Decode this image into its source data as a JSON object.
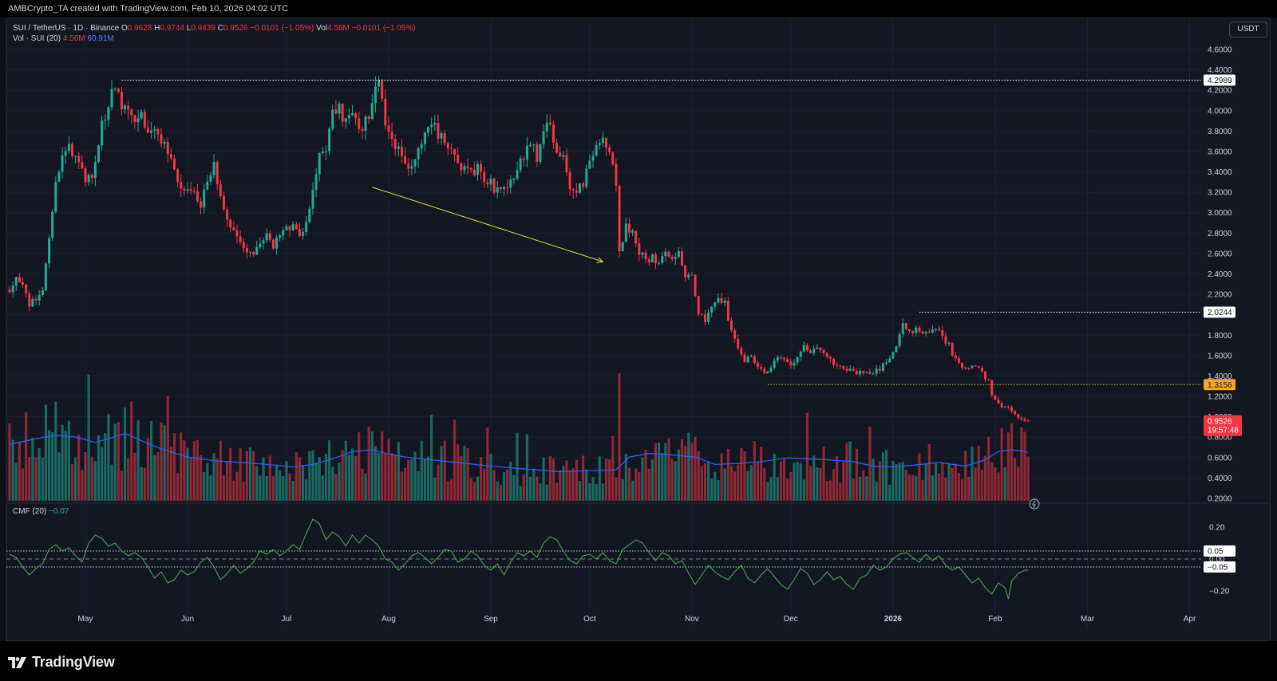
{
  "header": {
    "text": "AMBCrypto_TA created with TradingView.com, Feb 10, 2026 04:02 UTC"
  },
  "legend": {
    "symbol": "SUI / TetherUS · 1D · Binance",
    "open_label": "O",
    "open": "0.9628",
    "high_label": "H",
    "high": "0.9744",
    "low_label": "L",
    "low": "0.9439",
    "close_label": "C",
    "close": "0.9526",
    "change": "−0.0101 (−1.05%)",
    "vol_label": "Vol",
    "vol": "4.56M",
    "vol_change": "−0.0101 (−1.05%)",
    "vol_ind_label": "Vol · SUI (20)",
    "vol_ind_value": "4.56M",
    "vol_ind_ma": "60.91M"
  },
  "currency_button": "USDT",
  "cmf_legend": {
    "label": "CMF (20)",
    "value": "−0.07"
  },
  "footer": {
    "logo_text": "TradingView"
  },
  "colors": {
    "up": "#22ab94",
    "down": "#f23645",
    "vol_ma": "#2962ff",
    "cmf_line": "#4caf50",
    "arrow": "#e6d84a",
    "background": "#131722"
  },
  "chart_data": {
    "type": "candlestick",
    "symbol": "SUI / TetherUS",
    "interval": "1D",
    "exchange": "Binance",
    "ylim": [
      0.2,
      4.6
    ],
    "price_ticks": [
      "4.6000",
      "4.4000",
      "4.2000",
      "4.0000",
      "3.8000",
      "3.6000",
      "3.4000",
      "3.2000",
      "3.0000",
      "2.8000",
      "2.6000",
      "2.4000",
      "2.2000",
      "2.0000",
      "1.8000",
      "1.6000",
      "1.4000",
      "1.2000",
      "1.0000",
      "0.8000",
      "0.6000",
      "0.4000",
      "0.2000"
    ],
    "x_ticks": [
      "May",
      "Jun",
      "Jul",
      "Aug",
      "Sep",
      "Oct",
      "Nov",
      "Dec",
      "2026",
      "Feb",
      "Mar",
      "Apr"
    ],
    "x_tick_days": [
      23,
      54,
      84,
      115,
      146,
      176,
      207,
      237,
      268,
      299,
      327,
      358
    ],
    "bold_x_tick": "2026",
    "levels": [
      {
        "value": 4.2989,
        "label": "4.2989",
        "start_day": 34,
        "color": "#ffffff"
      },
      {
        "value": 2.0244,
        "label": "2.0244",
        "start_day": 276,
        "color": "#ffffff"
      },
      {
        "value": 1.3156,
        "label": "1.3156",
        "start_day": 230,
        "color": "#f5a623"
      }
    ],
    "last_price": {
      "value": 0.9526,
      "label": "0.9526",
      "countdown": "19:57:48"
    },
    "anchors": [
      [
        0,
        2.25
      ],
      [
        2,
        2.4
      ],
      [
        4,
        2.3
      ],
      [
        6,
        2.1
      ],
      [
        8,
        2.14
      ],
      [
        10,
        2.2
      ],
      [
        12,
        2.75
      ],
      [
        14,
        3.35
      ],
      [
        16,
        3.55
      ],
      [
        18,
        3.62
      ],
      [
        20,
        3.5
      ],
      [
        22,
        3.38
      ],
      [
        24,
        3.32
      ],
      [
        26,
        3.48
      ],
      [
        28,
        3.85
      ],
      [
        30,
        4.1
      ],
      [
        32,
        4.18
      ],
      [
        34,
        4.05
      ],
      [
        36,
        3.98
      ],
      [
        38,
        3.9
      ],
      [
        40,
        3.92
      ],
      [
        42,
        3.85
      ],
      [
        44,
        3.78
      ],
      [
        46,
        3.7
      ],
      [
        48,
        3.6
      ],
      [
        50,
        3.4
      ],
      [
        52,
        3.25
      ],
      [
        54,
        3.18
      ],
      [
        56,
        3.22
      ],
      [
        58,
        3.05
      ],
      [
        60,
        3.3
      ],
      [
        62,
        3.45
      ],
      [
        64,
        3.2
      ],
      [
        66,
        2.95
      ],
      [
        68,
        2.85
      ],
      [
        70,
        2.75
      ],
      [
        72,
        2.65
      ],
      [
        74,
        2.55
      ],
      [
        76,
        2.7
      ],
      [
        78,
        2.8
      ],
      [
        80,
        2.65
      ],
      [
        82,
        2.78
      ],
      [
        84,
        2.9
      ],
      [
        86,
        2.85
      ],
      [
        88,
        2.82
      ],
      [
        90,
        2.9
      ],
      [
        92,
        3.2
      ],
      [
        94,
        3.55
      ],
      [
        96,
        3.65
      ],
      [
        98,
        4.05
      ],
      [
        100,
        4.0
      ],
      [
        102,
        3.9
      ],
      [
        104,
        3.95
      ],
      [
        106,
        3.8
      ],
      [
        108,
        3.9
      ],
      [
        110,
        4.05
      ],
      [
        111,
        4.28
      ],
      [
        112,
        4.3
      ],
      [
        113,
        4.05
      ],
      [
        114,
        3.85
      ],
      [
        116,
        3.75
      ],
      [
        118,
        3.6
      ],
      [
        120,
        3.42
      ],
      [
        122,
        3.5
      ],
      [
        124,
        3.65
      ],
      [
        126,
        3.8
      ],
      [
        128,
        3.92
      ],
      [
        130,
        3.75
      ],
      [
        132,
        3.72
      ],
      [
        134,
        3.6
      ],
      [
        136,
        3.45
      ],
      [
        138,
        3.5
      ],
      [
        140,
        3.38
      ],
      [
        142,
        3.45
      ],
      [
        144,
        3.32
      ],
      [
        146,
        3.3
      ],
      [
        148,
        3.2
      ],
      [
        150,
        3.25
      ],
      [
        152,
        3.3
      ],
      [
        154,
        3.45
      ],
      [
        156,
        3.55
      ],
      [
        158,
        3.7
      ],
      [
        160,
        3.55
      ],
      [
        162,
        3.8
      ],
      [
        164,
        3.85
      ],
      [
        166,
        3.65
      ],
      [
        168,
        3.55
      ],
      [
        170,
        3.25
      ],
      [
        172,
        3.18
      ],
      [
        174,
        3.28
      ],
      [
        176,
        3.5
      ],
      [
        178,
        3.65
      ],
      [
        180,
        3.7
      ],
      [
        182,
        3.6
      ],
      [
        184,
        3.25
      ],
      [
        185,
        2.6
      ],
      [
        187,
        2.9
      ],
      [
        189,
        2.8
      ],
      [
        191,
        2.6
      ],
      [
        193,
        2.55
      ],
      [
        195,
        2.55
      ],
      [
        197,
        2.5
      ],
      [
        199,
        2.6
      ],
      [
        201,
        2.55
      ],
      [
        203,
        2.65
      ],
      [
        205,
        2.4
      ],
      [
        207,
        2.35
      ],
      [
        209,
        2.0
      ],
      [
        211,
        1.95
      ],
      [
        213,
        2.05
      ],
      [
        215,
        2.15
      ],
      [
        217,
        2.1
      ],
      [
        219,
        1.85
      ],
      [
        221,
        1.7
      ],
      [
        223,
        1.55
      ],
      [
        225,
        1.6
      ],
      [
        227,
        1.5
      ],
      [
        229,
        1.42
      ],
      [
        231,
        1.48
      ],
      [
        233,
        1.6
      ],
      [
        235,
        1.55
      ],
      [
        237,
        1.5
      ],
      [
        239,
        1.6
      ],
      [
        241,
        1.7
      ],
      [
        243,
        1.65
      ],
      [
        245,
        1.68
      ],
      [
        247,
        1.6
      ],
      [
        249,
        1.55
      ],
      [
        251,
        1.5
      ],
      [
        253,
        1.48
      ],
      [
        255,
        1.45
      ],
      [
        257,
        1.42
      ],
      [
        259,
        1.45
      ],
      [
        261,
        1.4
      ],
      [
        263,
        1.45
      ],
      [
        265,
        1.5
      ],
      [
        267,
        1.55
      ],
      [
        269,
        1.72
      ],
      [
        271,
        1.9
      ],
      [
        273,
        1.85
      ],
      [
        275,
        1.85
      ],
      [
        277,
        1.8
      ],
      [
        279,
        1.82
      ],
      [
        281,
        1.88
      ],
      [
        283,
        1.78
      ],
      [
        285,
        1.7
      ],
      [
        287,
        1.55
      ],
      [
        289,
        1.5
      ],
      [
        291,
        1.48
      ],
      [
        293,
        1.5
      ],
      [
        295,
        1.42
      ],
      [
        297,
        1.35
      ],
      [
        298,
        1.22
      ],
      [
        300,
        1.12
      ],
      [
        302,
        1.1
      ],
      [
        304,
        1.05
      ],
      [
        306,
        1.0
      ],
      [
        308,
        0.96
      ],
      [
        309,
        0.9526
      ]
    ],
    "volume_axis": {
      "max_m": 140
    },
    "volume_ma_anchors": [
      [
        0,
        62
      ],
      [
        8,
        68
      ],
      [
        14,
        72
      ],
      [
        20,
        70
      ],
      [
        26,
        64
      ],
      [
        30,
        68
      ],
      [
        35,
        74
      ],
      [
        40,
        66
      ],
      [
        46,
        57
      ],
      [
        54,
        48
      ],
      [
        62,
        44
      ],
      [
        70,
        42
      ],
      [
        78,
        40
      ],
      [
        86,
        37
      ],
      [
        92,
        40
      ],
      [
        98,
        46
      ],
      [
        104,
        54
      ],
      [
        110,
        56
      ],
      [
        114,
        52
      ],
      [
        120,
        48
      ],
      [
        128,
        45
      ],
      [
        136,
        42
      ],
      [
        146,
        38
      ],
      [
        156,
        35
      ],
      [
        166,
        32
      ],
      [
        176,
        33
      ],
      [
        184,
        34
      ],
      [
        188,
        48
      ],
      [
        194,
        52
      ],
      [
        202,
        50
      ],
      [
        208,
        48
      ],
      [
        214,
        40
      ],
      [
        222,
        41
      ],
      [
        230,
        44
      ],
      [
        236,
        47
      ],
      [
        242,
        46
      ],
      [
        248,
        45
      ],
      [
        256,
        43
      ],
      [
        262,
        38
      ],
      [
        268,
        37
      ],
      [
        274,
        39
      ],
      [
        282,
        42
      ],
      [
        290,
        38
      ],
      [
        296,
        45
      ],
      [
        300,
        54
      ],
      [
        304,
        56
      ],
      [
        308,
        54
      ],
      [
        309,
        53
      ]
    ],
    "cmf": {
      "ylim": [
        -0.27,
        0.31
      ],
      "ticks": [
        "0.20",
        "0.00",
        "−0.20"
      ],
      "tick_values": [
        0.2,
        0.0,
        -0.2
      ],
      "levels": [
        {
          "value": 0.05,
          "label": "0.05"
        },
        {
          "value": -0.05,
          "label": "−0.05"
        }
      ],
      "anchors": [
        [
          0,
          0.03
        ],
        [
          2,
          0.01
        ],
        [
          4,
          -0.05
        ],
        [
          6,
          -0.1
        ],
        [
          8,
          -0.06
        ],
        [
          10,
          -0.03
        ],
        [
          12,
          0.06
        ],
        [
          14,
          0.09
        ],
        [
          16,
          0.05
        ],
        [
          18,
          0.07
        ],
        [
          20,
          0.02
        ],
        [
          22,
          -0.02
        ],
        [
          24,
          0.1
        ],
        [
          26,
          0.15
        ],
        [
          28,
          0.13
        ],
        [
          30,
          0.08
        ],
        [
          32,
          0.1
        ],
        [
          34,
          0.05
        ],
        [
          36,
          0.02
        ],
        [
          38,
          0.04
        ],
        [
          40,
          0.01
        ],
        [
          42,
          -0.05
        ],
        [
          44,
          -0.12
        ],
        [
          46,
          -0.08
        ],
        [
          48,
          -0.15
        ],
        [
          50,
          -0.13
        ],
        [
          52,
          -0.07
        ],
        [
          54,
          -0.1
        ],
        [
          56,
          -0.08
        ],
        [
          58,
          -0.02
        ],
        [
          60,
          0.01
        ],
        [
          62,
          -0.05
        ],
        [
          64,
          -0.13
        ],
        [
          66,
          -0.09
        ],
        [
          68,
          -0.04
        ],
        [
          70,
          -0.09
        ],
        [
          72,
          -0.06
        ],
        [
          74,
          -0.02
        ],
        [
          76,
          0.05
        ],
        [
          78,
          0.03
        ],
        [
          80,
          0.06
        ],
        [
          82,
          0.02
        ],
        [
          84,
          0.05
        ],
        [
          86,
          0.09
        ],
        [
          88,
          0.06
        ],
        [
          90,
          0.16
        ],
        [
          92,
          0.25
        ],
        [
          94,
          0.22
        ],
        [
          96,
          0.12
        ],
        [
          98,
          0.17
        ],
        [
          100,
          0.14
        ],
        [
          102,
          0.08
        ],
        [
          104,
          0.15
        ],
        [
          106,
          0.1
        ],
        [
          108,
          0.15
        ],
        [
          110,
          0.12
        ],
        [
          112,
          0.08
        ],
        [
          114,
          0.0
        ],
        [
          116,
          -0.02
        ],
        [
          118,
          -0.07
        ],
        [
          120,
          -0.03
        ],
        [
          122,
          0.02
        ],
        [
          124,
          0.04
        ],
        [
          126,
          0.01
        ],
        [
          128,
          -0.03
        ],
        [
          130,
          0.01
        ],
        [
          132,
          0.06
        ],
        [
          134,
          0.05
        ],
        [
          136,
          -0.02
        ],
        [
          138,
          0.0
        ],
        [
          140,
          0.05
        ],
        [
          142,
          0.02
        ],
        [
          144,
          -0.04
        ],
        [
          146,
          -0.07
        ],
        [
          148,
          -0.03
        ],
        [
          150,
          -0.1
        ],
        [
          152,
          -0.02
        ],
        [
          154,
          0.04
        ],
        [
          156,
          0.02
        ],
        [
          158,
          0.05
        ],
        [
          160,
          0.01
        ],
        [
          162,
          0.1
        ],
        [
          164,
          0.14
        ],
        [
          166,
          0.12
        ],
        [
          168,
          0.05
        ],
        [
          170,
          -0.01
        ],
        [
          172,
          -0.03
        ],
        [
          174,
          0.02
        ],
        [
          176,
          0.03
        ],
        [
          178,
          0.0
        ],
        [
          180,
          0.04
        ],
        [
          182,
          -0.01
        ],
        [
          184,
          -0.03
        ],
        [
          186,
          0.06
        ],
        [
          188,
          0.09
        ],
        [
          190,
          0.12
        ],
        [
          192,
          0.1
        ],
        [
          194,
          0.04
        ],
        [
          196,
          -0.01
        ],
        [
          198,
          0.04
        ],
        [
          200,
          0.02
        ],
        [
          202,
          -0.03
        ],
        [
          204,
          -0.01
        ],
        [
          206,
          -0.09
        ],
        [
          208,
          -0.16
        ],
        [
          210,
          -0.1
        ],
        [
          212,
          -0.04
        ],
        [
          214,
          -0.08
        ],
        [
          216,
          -0.11
        ],
        [
          218,
          -0.13
        ],
        [
          220,
          -0.08
        ],
        [
          222,
          -0.04
        ],
        [
          224,
          -0.12
        ],
        [
          226,
          -0.15
        ],
        [
          228,
          -0.1
        ],
        [
          230,
          -0.06
        ],
        [
          232,
          -0.11
        ],
        [
          234,
          -0.16
        ],
        [
          236,
          -0.19
        ],
        [
          238,
          -0.13
        ],
        [
          240,
          -0.06
        ],
        [
          242,
          -0.09
        ],
        [
          244,
          -0.16
        ],
        [
          246,
          -0.13
        ],
        [
          248,
          -0.08
        ],
        [
          250,
          -0.13
        ],
        [
          252,
          -0.11
        ],
        [
          254,
          -0.16
        ],
        [
          256,
          -0.19
        ],
        [
          258,
          -0.12
        ],
        [
          260,
          -0.1
        ],
        [
          262,
          -0.04
        ],
        [
          264,
          -0.07
        ],
        [
          266,
          -0.05
        ],
        [
          268,
          0.0
        ],
        [
          270,
          0.03
        ],
        [
          272,
          0.04
        ],
        [
          274,
          0.01
        ],
        [
          276,
          -0.02
        ],
        [
          278,
          0.03
        ],
        [
          280,
          -0.01
        ],
        [
          282,
          0.02
        ],
        [
          284,
          -0.04
        ],
        [
          286,
          -0.07
        ],
        [
          288,
          -0.05
        ],
        [
          290,
          -0.1
        ],
        [
          292,
          -0.15
        ],
        [
          294,
          -0.12
        ],
        [
          296,
          -0.18
        ],
        [
          298,
          -0.22
        ],
        [
          300,
          -0.15
        ],
        [
          302,
          -0.18
        ],
        [
          303,
          -0.25
        ],
        [
          304,
          -0.14
        ],
        [
          306,
          -0.09
        ],
        [
          308,
          -0.07
        ],
        [
          309,
          -0.07
        ]
      ]
    }
  }
}
